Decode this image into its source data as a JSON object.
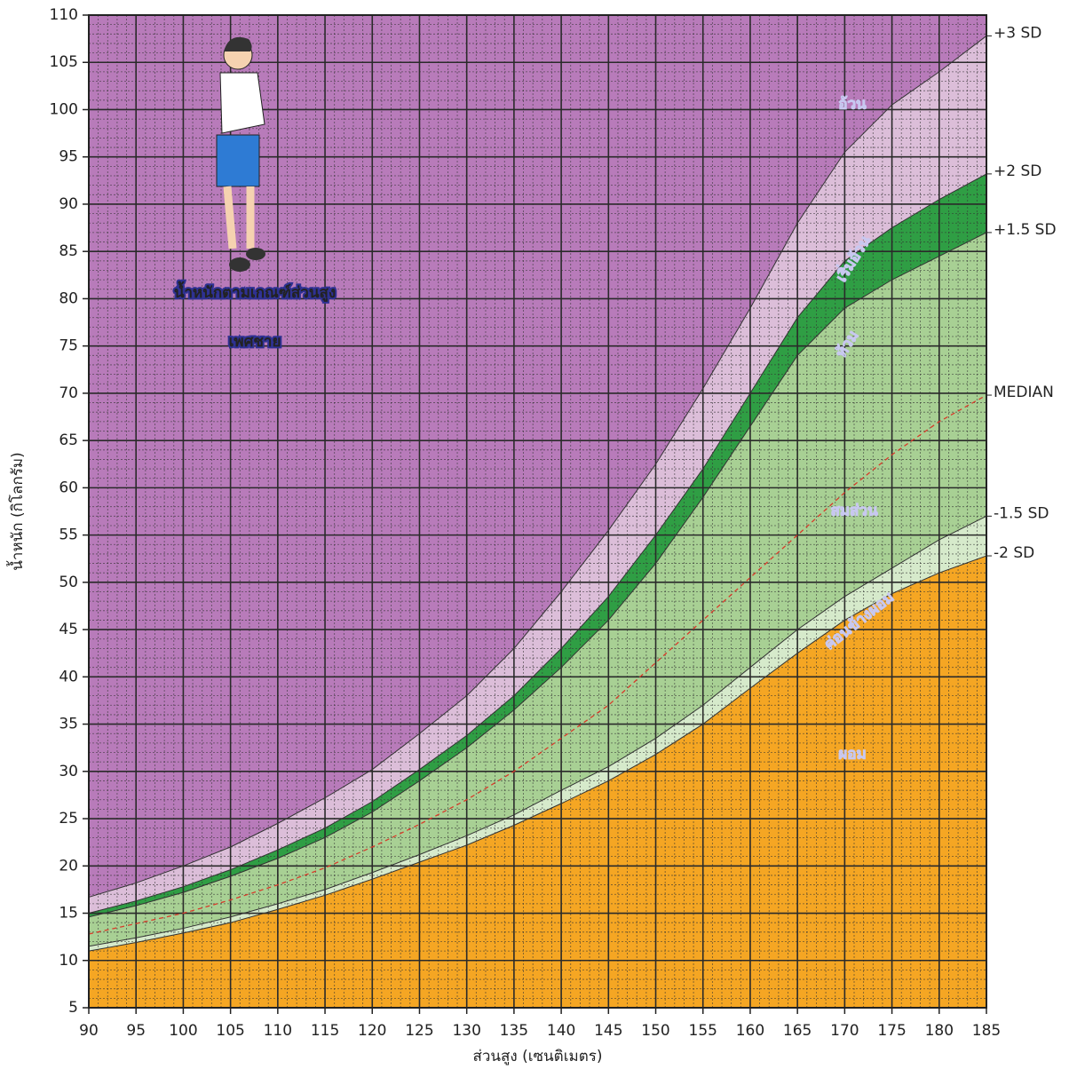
{
  "chart_data": {
    "type": "area",
    "title": "น้ำหนักตามเกณฑ์ส่วนสูง",
    "subtitle": "เพศชาย",
    "x_label": "ส่วนสูง (เซนติเมตร)",
    "y_label": "น้ำหนัก (กิโลกรัม)",
    "background": "#b87bba",
    "x": [
      90,
      95,
      100,
      105,
      110,
      115,
      120,
      125,
      130,
      135,
      140,
      145,
      150,
      155,
      160,
      165,
      170,
      175,
      180,
      185
    ],
    "series": [
      {
        "name": "+3 SD",
        "color": "#dcbed9",
        "values": [
          16.7,
          18.2,
          20,
          22,
          24.5,
          27.2,
          30.2,
          34,
          38,
          43,
          49,
          55.5,
          62.5,
          70.5,
          79,
          88,
          95.5,
          100.5,
          104,
          107.8
        ]
      },
      {
        "name": "+2 SD",
        "color": "#2f9e44",
        "values": [
          15,
          16.3,
          17.8,
          19.6,
          21.7,
          24,
          26.8,
          30.2,
          33.8,
          38,
          43,
          48.5,
          55,
          62,
          70,
          78,
          84,
          87.5,
          90.5,
          93.2
        ]
      },
      {
        "name": "+1.5 SD",
        "color": "#a8d094",
        "values": [
          14.6,
          15.8,
          17.2,
          18.9,
          20.8,
          23,
          25.7,
          29,
          32.5,
          36.5,
          41,
          46,
          52,
          59,
          66.5,
          74,
          79,
          82,
          84.5,
          87
        ]
      },
      {
        "name": "MEDIAN",
        "color": "#d83a2a",
        "style": "dashed",
        "values": [
          12.8,
          13.9,
          15,
          16.4,
          18,
          19.8,
          22,
          24.4,
          27,
          30,
          33.5,
          37,
          41.5,
          46,
          50.5,
          55,
          59.5,
          63.5,
          67,
          69.8
        ]
      },
      {
        "name": "-1.5 SD",
        "color": "#d6eacb",
        "values": [
          11.5,
          12.4,
          13.4,
          14.6,
          16,
          17.5,
          19.3,
          21.2,
          23.2,
          25.4,
          28,
          30.5,
          33.5,
          37,
          41,
          45,
          48.5,
          51.5,
          54.5,
          57
        ]
      },
      {
        "name": "-2 SD",
        "color": "#f5a623",
        "values": [
          11,
          11.9,
          12.9,
          14,
          15.4,
          16.9,
          18.6,
          20.4,
          22.2,
          24.3,
          26.6,
          29,
          31.8,
          35,
          38.8,
          42.5,
          46,
          48.8,
          51,
          52.8
        ]
      }
    ],
    "annotations": [
      "อ้วน",
      "เริ่มอ้วน",
      "ท้วม",
      "สมส่วน",
      "ค่อนข้างผอม",
      "ผอม"
    ],
    "xlim": [
      90,
      185
    ],
    "ylim": [
      5,
      110
    ],
    "xticks": [
      90,
      95,
      100,
      105,
      110,
      115,
      120,
      125,
      130,
      135,
      140,
      145,
      150,
      155,
      160,
      165,
      170,
      175,
      180,
      185
    ],
    "yticks": [
      5,
      10,
      15,
      20,
      25,
      30,
      35,
      40,
      45,
      50,
      55,
      60,
      65,
      70,
      75,
      80,
      85,
      90,
      95,
      100,
      105,
      110
    ],
    "grid": true,
    "minor_grid": true
  }
}
